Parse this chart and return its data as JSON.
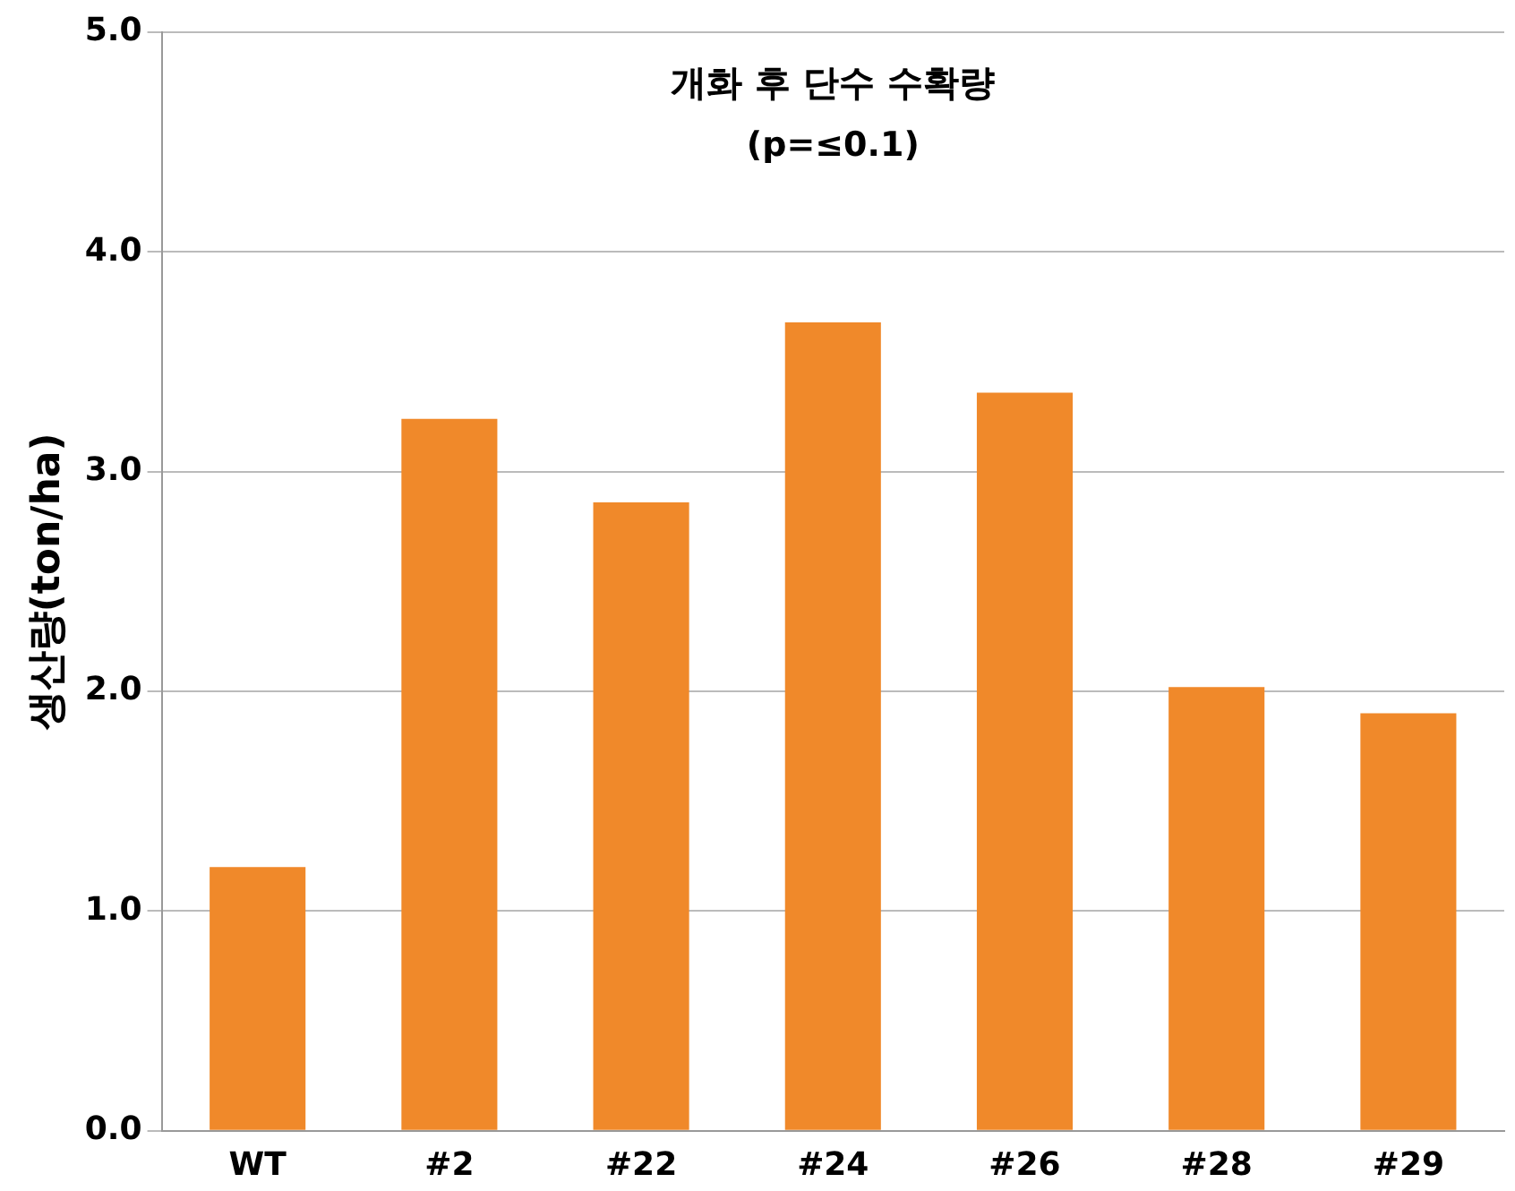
{
  "chart_data": {
    "type": "bar",
    "title": "개화 후 단수 수확량",
    "subtitle": "(p=≤0.1)",
    "ylabel": "생산량(ton/ha)",
    "categories": [
      "WT",
      "#2",
      "#22",
      "#24",
      "#26",
      "#28",
      "#29"
    ],
    "values": [
      1.2,
      3.24,
      2.86,
      3.68,
      3.36,
      2.02,
      1.9
    ],
    "color": "#f0892a",
    "ylim": [
      0,
      5
    ],
    "yticks": [
      {
        "value": 0,
        "label": "0.0"
      },
      {
        "value": 1,
        "label": "1.0"
      },
      {
        "value": 2,
        "label": "2.0"
      },
      {
        "value": 3,
        "label": "3.0"
      },
      {
        "value": 4,
        "label": "4.0"
      },
      {
        "value": 5,
        "label": "5.0"
      }
    ],
    "grid": "y",
    "legend": false
  }
}
